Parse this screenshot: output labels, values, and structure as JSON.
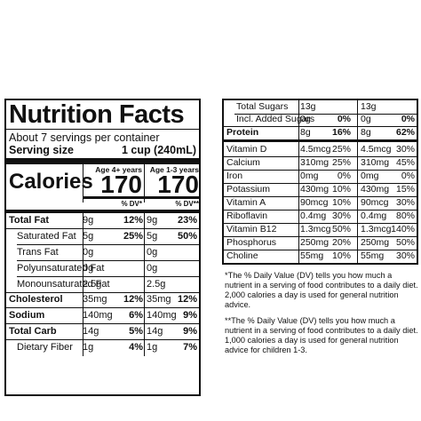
{
  "title": "Nutrition Facts",
  "servings_per_container": "About 7 servings per container",
  "serving_size_label": "Serving size",
  "serving_size_value": "1 cup (240mL)",
  "calories_label": "Calories",
  "age_groups": [
    "Age 4+ years",
    "Age 1-3 years"
  ],
  "calories": [
    "170",
    "170"
  ],
  "dv_headers": [
    "% DV*",
    "% DV**"
  ],
  "left_rows": [
    {
      "label": "Total Fat",
      "bold": true,
      "sub": false,
      "a1": "9g",
      "p1": "12%",
      "a2": "9g",
      "p2": "23%"
    },
    {
      "label": "Saturated Fat",
      "bold": false,
      "sub": true,
      "a1": "5g",
      "p1": "25%",
      "a2": "5g",
      "p2": "50%"
    },
    {
      "label": "Trans Fat",
      "bold": false,
      "sub": true,
      "a1": "0g",
      "p1": "",
      "a2": "0g",
      "p2": ""
    },
    {
      "label": "Polyunsaturated Fat",
      "bold": false,
      "sub": true,
      "a1": "0g",
      "p1": "",
      "a2": "0g",
      "p2": ""
    },
    {
      "label": "Monounsaturated Fat",
      "bold": false,
      "sub": true,
      "a1": "2.5g",
      "p1": "",
      "a2": "2.5g",
      "p2": ""
    },
    {
      "label": "Cholesterol",
      "bold": true,
      "sub": false,
      "a1": "35mg",
      "p1": "12%",
      "a2": "35mg",
      "p2": "12%"
    },
    {
      "label": "Sodium",
      "bold": true,
      "sub": false,
      "a1": "140mg",
      "p1": "6%",
      "a2": "140mg",
      "p2": "9%"
    },
    {
      "label": "Total Carb",
      "bold": true,
      "sub": false,
      "a1": "14g",
      "p1": "5%",
      "a2": "14g",
      "p2": "9%"
    },
    {
      "label": "Dietary Fiber",
      "bold": false,
      "sub": true,
      "a1": "1g",
      "p1": "4%",
      "a2": "1g",
      "p2": "7%"
    }
  ],
  "right_rows": [
    {
      "label": "Total Sugars",
      "bold": false,
      "sub": true,
      "a1": "13g",
      "p1": "",
      "a2": "13g",
      "p2": ""
    },
    {
      "label": "Incl. Added Sugars",
      "bold": false,
      "sub": true,
      "a1": "0g",
      "p1": "0%",
      "a2": "0g",
      "p2": "0%",
      "pbold": true
    },
    {
      "label": "Protein",
      "bold": true,
      "sub": false,
      "a1": "8g",
      "p1": "16%",
      "a2": "8g",
      "p2": "62%",
      "pbold": true
    },
    {
      "label": "Vitamin D",
      "bold": false,
      "sub": false,
      "a1": "4.5mcg",
      "p1": "25%",
      "a2": "4.5mcg",
      "p2": "30%"
    },
    {
      "label": "Calcium",
      "bold": false,
      "sub": false,
      "a1": "310mg",
      "p1": "25%",
      "a2": "310mg",
      "p2": "45%"
    },
    {
      "label": "Iron",
      "bold": false,
      "sub": false,
      "a1": "0mg",
      "p1": "0%",
      "a2": "0mg",
      "p2": "0%"
    },
    {
      "label": "Potassium",
      "bold": false,
      "sub": false,
      "a1": "430mg",
      "p1": "10%",
      "a2": "430mg",
      "p2": "15%"
    },
    {
      "label": "Vitamin A",
      "bold": false,
      "sub": false,
      "a1": "90mcg",
      "p1": "10%",
      "a2": "90mcg",
      "p2": "30%"
    },
    {
      "label": "Riboflavin",
      "bold": false,
      "sub": false,
      "a1": "0.4mg",
      "p1": "30%",
      "a2": "0.4mg",
      "p2": "80%"
    },
    {
      "label": "Vitamin B12",
      "bold": false,
      "sub": false,
      "a1": "1.3mcg",
      "p1": "50%",
      "a2": "1.3mcg",
      "p2": "140%"
    },
    {
      "label": "Phosphorus",
      "bold": false,
      "sub": false,
      "a1": "250mg",
      "p1": "20%",
      "a2": "250mg",
      "p2": "50%"
    },
    {
      "label": "Choline",
      "bold": false,
      "sub": false,
      "a1": "55mg",
      "p1": "10%",
      "a2": "55mg",
      "p2": "30%"
    }
  ],
  "footnotes": [
    "*The % Daily Value (DV) tells you how much a nutrient in a serving of food contributes to a daily diet. 2,000 calories a day is used for general nutrition advice.",
    "**The % Daily Value (DV) tells you how much a nutrient in a serving of food contributes to a daily diet. 1,000 calories a day is used for general nutrition advice for children 1-3."
  ]
}
